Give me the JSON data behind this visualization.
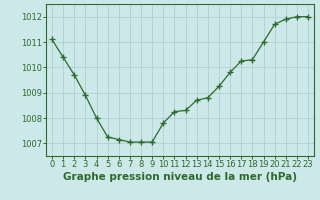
{
  "x": [
    0,
    1,
    2,
    3,
    4,
    5,
    6,
    7,
    8,
    9,
    10,
    11,
    12,
    13,
    14,
    15,
    16,
    17,
    18,
    19,
    20,
    21,
    22,
    23
  ],
  "y": [
    1011.1,
    1010.4,
    1009.7,
    1008.9,
    1008.0,
    1007.25,
    1007.15,
    1007.05,
    1007.05,
    1007.05,
    1007.8,
    1008.25,
    1008.3,
    1008.7,
    1008.8,
    1009.25,
    1009.8,
    1010.25,
    1010.3,
    1011.0,
    1011.7,
    1011.9,
    1012.0,
    1012.0
  ],
  "line_color": "#2d6a2d",
  "marker": "+",
  "marker_size": 4,
  "bg_color": "#cce8e8",
  "grid_color": "#aacccc",
  "xlabel": "Graphe pression niveau de la mer (hPa)",
  "xlabel_fontsize": 7.5,
  "yticks": [
    1007,
    1008,
    1009,
    1010,
    1011,
    1012
  ],
  "xticks": [
    0,
    1,
    2,
    3,
    4,
    5,
    6,
    7,
    8,
    9,
    10,
    11,
    12,
    13,
    14,
    15,
    16,
    17,
    18,
    19,
    20,
    21,
    22,
    23
  ],
  "ylim": [
    1006.5,
    1012.5
  ],
  "xlim": [
    -0.5,
    23.5
  ],
  "tick_fontsize": 6,
  "tick_color": "#2d6a2d",
  "spine_color": "#2d6a2d",
  "xlabel_color": "#2d6a2d",
  "xlabel_bold": true
}
